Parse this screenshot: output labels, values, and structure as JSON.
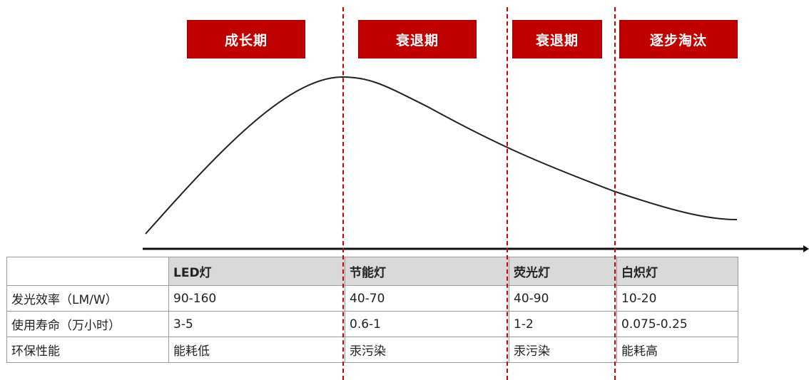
{
  "stages": [
    {
      "label": "成长期"
    },
    {
      "label": "衰退期"
    },
    {
      "label": "衰退期"
    },
    {
      "label": "逐步淘汰"
    }
  ],
  "table": {
    "columns": [
      "",
      "LED灯",
      "节能灯",
      "荧光灯",
      "白炽灯"
    ],
    "rows": [
      {
        "label": "发光效率（LM/W）",
        "values": [
          "90-160",
          "40-70",
          "40-90",
          "10-20"
        ]
      },
      {
        "label": "使用寿命（万小时）",
        "values": [
          "3-5",
          "0.6-1",
          "1-2",
          "0.075-0.25"
        ]
      },
      {
        "label": "环保性能",
        "values": [
          "能耗低",
          "汞污染",
          "汞污染",
          "能耗高"
        ]
      }
    ]
  },
  "colors": {
    "stage_fill": "#c00000",
    "divider": "#d00000",
    "header_shade": "#d9d9d9",
    "curve": "#222222"
  }
}
